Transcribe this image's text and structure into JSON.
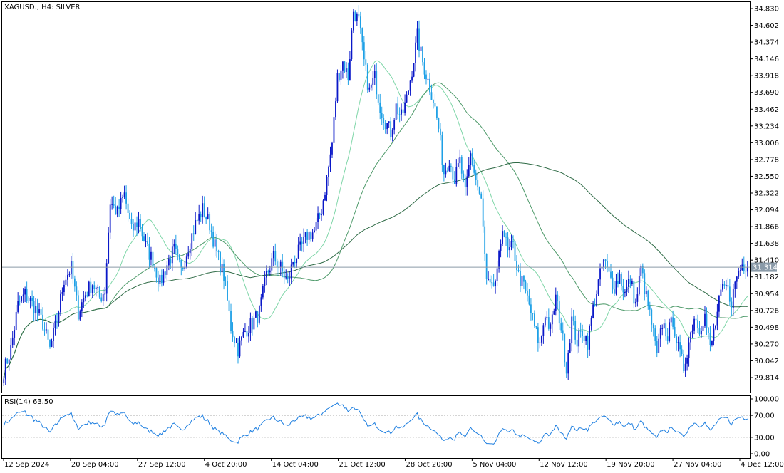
{
  "header": {
    "symbol_label": "XAGUSD., H4:  SILVER",
    "rsi_label": "RSI(14) 63.50"
  },
  "colors": {
    "bull": "#0a18c8",
    "bear": "#1ea0e6",
    "ma_fast": "#7fd6a8",
    "ma_mid": "#4e9a6a",
    "ma_slow": "#2f6b46",
    "rsi_line": "#1e7fe0",
    "grid_dotted": "#bbbbbb",
    "price_marker_bg": "#8a9aa8"
  },
  "price_axis": {
    "ticks": [
      "34.830",
      "34.602",
      "34.374",
      "34.146",
      "33.918",
      "33.690",
      "33.462",
      "33.234",
      "33.006",
      "32.778",
      "32.550",
      "32.322",
      "32.094",
      "31.866",
      "31.638",
      "31.410",
      "31.182",
      "30.954",
      "30.726",
      "30.498",
      "30.270",
      "30.042",
      "29.814"
    ],
    "min": 29.7,
    "max": 34.93,
    "current_price": "31.314"
  },
  "rsi_axis": {
    "ticks": [
      "100.00",
      "70.00",
      "30.00",
      "0.00"
    ],
    "levels": [
      70,
      30
    ]
  },
  "time_axis": {
    "labels": [
      "12 Sep 2024",
      "20 Sep 04:00",
      "27 Sep 12:00",
      "4 Oct 20:00",
      "14 Oct 04:00",
      "21 Oct 12:00",
      "28 Oct 20:00",
      "5 Nov 04:00",
      "12 Nov 12:00",
      "19 Nov 20:00",
      "27 Nov 04:00",
      "4 Dec 12:00"
    ]
  },
  "chart_data": {
    "type": "candlestick",
    "symbol": "XAGUSD.",
    "timeframe": "H4",
    "price_keypoints": [
      [
        0,
        29.9
      ],
      [
        4,
        30.2
      ],
      [
        8,
        30.8
      ],
      [
        12,
        30.95
      ],
      [
        18,
        30.75
      ],
      [
        22,
        30.55
      ],
      [
        26,
        30.2
      ],
      [
        30,
        30.6
      ],
      [
        34,
        31.15
      ],
      [
        38,
        31.3
      ],
      [
        42,
        30.7
      ],
      [
        46,
        30.95
      ],
      [
        50,
        31.1
      ],
      [
        54,
        30.9
      ],
      [
        57,
        31.0
      ],
      [
        60,
        32.2
      ],
      [
        64,
        32.05
      ],
      [
        68,
        32.3
      ],
      [
        72,
        31.8
      ],
      [
        76,
        31.95
      ],
      [
        80,
        31.6
      ],
      [
        84,
        31.4
      ],
      [
        88,
        31.1
      ],
      [
        92,
        31.35
      ],
      [
        96,
        31.55
      ],
      [
        100,
        31.25
      ],
      [
        104,
        31.6
      ],
      [
        108,
        31.9
      ],
      [
        112,
        32.1
      ],
      [
        116,
        31.9
      ],
      [
        120,
        31.5
      ],
      [
        124,
        31.2
      ],
      [
        128,
        30.5
      ],
      [
        132,
        30.2
      ],
      [
        136,
        30.45
      ],
      [
        140,
        30.55
      ],
      [
        144,
        30.7
      ],
      [
        148,
        31.2
      ],
      [
        152,
        31.45
      ],
      [
        156,
        31.3
      ],
      [
        160,
        31.1
      ],
      [
        163,
        31.4
      ],
      [
        167,
        31.55
      ],
      [
        171,
        31.75
      ],
      [
        175,
        31.8
      ],
      [
        179,
        32.1
      ],
      [
        182,
        32.5
      ],
      [
        185,
        33.0
      ],
      [
        188,
        33.9
      ],
      [
        191,
        34.1
      ],
      [
        194,
        33.9
      ],
      [
        197,
        34.8
      ],
      [
        200,
        34.65
      ],
      [
        203,
        34.1
      ],
      [
        206,
        33.7
      ],
      [
        209,
        33.9
      ],
      [
        212,
        33.5
      ],
      [
        215,
        33.3
      ],
      [
        218,
        33.15
      ],
      [
        221,
        33.5
      ],
      [
        224,
        33.35
      ],
      [
        227,
        33.6
      ],
      [
        230,
        34.0
      ],
      [
        233,
        34.45
      ],
      [
        236,
        34.1
      ],
      [
        239,
        33.85
      ],
      [
        242,
        33.6
      ],
      [
        245,
        33.2
      ],
      [
        248,
        32.6
      ],
      [
        251,
        32.8
      ],
      [
        254,
        32.5
      ],
      [
        257,
        32.75
      ],
      [
        260,
        32.3
      ],
      [
        263,
        32.85
      ],
      [
        266,
        32.5
      ],
      [
        269,
        32.2
      ],
      [
        272,
        31.1
      ],
      [
        275,
        31.0
      ],
      [
        278,
        31.2
      ],
      [
        281,
        31.9
      ],
      [
        284,
        31.5
      ],
      [
        287,
        31.6
      ],
      [
        290,
        31.2
      ],
      [
        293,
        31.05
      ],
      [
        296,
        30.8
      ],
      [
        299,
        30.5
      ],
      [
        302,
        30.25
      ],
      [
        305,
        30.7
      ],
      [
        308,
        30.45
      ],
      [
        311,
        30.9
      ],
      [
        314,
        30.5
      ],
      [
        317,
        29.95
      ],
      [
        320,
        30.6
      ],
      [
        323,
        30.3
      ],
      [
        326,
        30.45
      ],
      [
        329,
        30.3
      ],
      [
        332,
        30.75
      ],
      [
        335,
        31.1
      ],
      [
        338,
        31.4
      ],
      [
        341,
        31.2
      ],
      [
        344,
        31.05
      ],
      [
        347,
        31.2
      ],
      [
        350,
        30.95
      ],
      [
        353,
        31.15
      ],
      [
        356,
        30.8
      ],
      [
        359,
        31.3
      ],
      [
        362,
        30.9
      ],
      [
        365,
        30.55
      ],
      [
        368,
        30.1
      ],
      [
        371,
        30.55
      ],
      [
        374,
        30.4
      ],
      [
        377,
        30.6
      ],
      [
        380,
        30.2
      ],
      [
        383,
        29.95
      ],
      [
        386,
        30.3
      ],
      [
        389,
        30.65
      ],
      [
        392,
        30.5
      ],
      [
        395,
        30.65
      ],
      [
        398,
        30.2
      ],
      [
        401,
        30.55
      ],
      [
        404,
        30.95
      ],
      [
        407,
        31.05
      ],
      [
        410,
        30.85
      ],
      [
        413,
        31.2
      ],
      [
        416,
        31.35
      ]
    ],
    "current_price": 31.314,
    "rsi": {
      "period": 14,
      "last": 63.5,
      "levels": [
        70,
        30
      ],
      "range": [
        0,
        100
      ]
    },
    "moving_averages": [
      "fast",
      "mid",
      "slow"
    ]
  }
}
